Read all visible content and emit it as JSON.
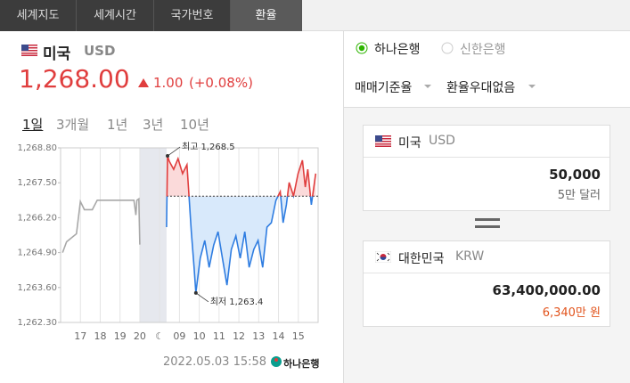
{
  "tabs": [
    "세계지도",
    "세계시간",
    "국가번호",
    "환율"
  ],
  "quote": {
    "country": "미국",
    "code": "USD",
    "rate": "1,268.00",
    "change": "1.00",
    "change_pct": "(+0.08%)"
  },
  "ranges": [
    "1일",
    "3개월",
    "1년",
    "3년",
    "10년"
  ],
  "chart_data": {
    "type": "line",
    "ylim": [
      1262.3,
      1268.8
    ],
    "yticks": [
      {
        "value": 1262.3,
        "label": "1,262.30"
      },
      {
        "value": 1263.6,
        "label": "1,263.60"
      },
      {
        "value": 1264.9,
        "label": "1,264.90"
      },
      {
        "value": 1266.2,
        "label": "1,266.20"
      },
      {
        "value": 1267.5,
        "label": "1,267.50"
      },
      {
        "value": 1268.8,
        "label": "1,268.80"
      }
    ],
    "xlim": [
      0,
      13
    ],
    "xticks": [
      {
        "value": 1,
        "label": "17"
      },
      {
        "value": 2,
        "label": "18"
      },
      {
        "value": 3,
        "label": "19"
      },
      {
        "value": 4,
        "label": "20"
      },
      {
        "value": 5,
        "label": "☾"
      },
      {
        "value": 6,
        "label": "09"
      },
      {
        "value": 7,
        "label": "10"
      },
      {
        "value": 8,
        "label": "11"
      },
      {
        "value": 9,
        "label": "12"
      },
      {
        "value": 10,
        "label": "13"
      },
      {
        "value": 11,
        "label": "14"
      },
      {
        "value": 12,
        "label": "15"
      }
    ],
    "grid": true,
    "reference": 1267.0,
    "series": [
      {
        "color": "#a8a8a8",
        "x": [
          0.1,
          0.3,
          0.8,
          1.0,
          1.2,
          1.6,
          1.85,
          3.7,
          3.8,
          3.85,
          3.95,
          4.0
        ],
        "values": [
          1264.9,
          1265.3,
          1265.6,
          1266.8,
          1266.5,
          1266.5,
          1266.85,
          1266.85,
          1266.3,
          1266.85,
          1266.9,
          1265.2
        ]
      },
      {
        "color": "#e03e3e",
        "color_below": "#2f7de1",
        "fill": "#fbdada",
        "fill_below": "#d8e9fb",
        "x": [
          5.35,
          5.4,
          5.49,
          5.71,
          5.93,
          6.16,
          6.38,
          6.47,
          6.6,
          6.74,
          6.83,
          7.05,
          7.28,
          7.5,
          7.73,
          7.95,
          8.17,
          8.4,
          8.62,
          8.85,
          9.07,
          9.3,
          9.52,
          9.75,
          9.97,
          10.2,
          10.42,
          10.64,
          10.87,
          11.09,
          11.23,
          11.4,
          11.54,
          11.76,
          11.99,
          12.21,
          12.35,
          12.48,
          12.66,
          12.88
        ],
        "values": [
          1265.85,
          1268.5,
          1268.3,
          1268.0,
          1268.4,
          1267.84,
          1268.17,
          1267.17,
          1265.68,
          1264.35,
          1263.4,
          1264.69,
          1265.35,
          1264.35,
          1265.18,
          1265.68,
          1264.69,
          1263.69,
          1265.02,
          1265.52,
          1264.69,
          1265.68,
          1264.35,
          1265.02,
          1265.35,
          1264.35,
          1265.85,
          1266.01,
          1266.84,
          1267.17,
          1266.01,
          1266.68,
          1267.51,
          1267.01,
          1267.84,
          1268.34,
          1267.34,
          1268.0,
          1266.68,
          1267.84
        ]
      }
    ],
    "annotations": [
      {
        "text": "최고",
        "x": 5.4,
        "value": 1268.5,
        "label": "1,268.5"
      },
      {
        "text": "최저",
        "x": 6.83,
        "value": 1263.4,
        "label": "1,263.4"
      }
    ]
  },
  "footer": {
    "time": "2022.05.03 15:58",
    "bank": "하나은행"
  },
  "banks": [
    "하나은행",
    "신한은행"
  ],
  "options": [
    "매매기준율",
    "환율우대없음"
  ],
  "from": {
    "country": "미국",
    "code": "USD",
    "amount": "50,000",
    "words": "5만 달러"
  },
  "to": {
    "country": "대한민국",
    "code": "KRW",
    "amount": "63,400,000.00",
    "words": "6,340만 원"
  }
}
